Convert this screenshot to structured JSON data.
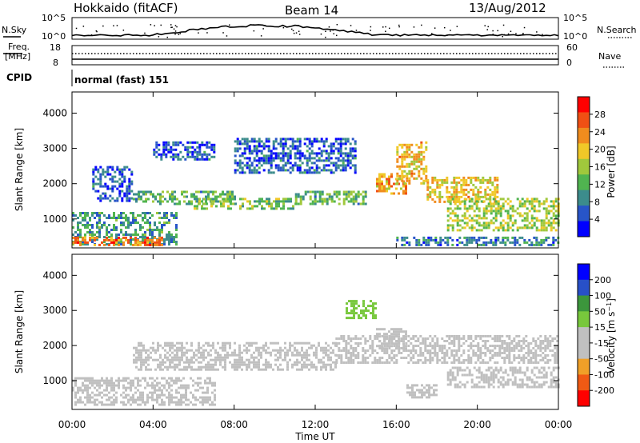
{
  "header": {
    "station": "Hokkaido (fitACF)",
    "beam": "Beam 14",
    "date": "13/Aug/2012"
  },
  "nsky_panel": {
    "left_label": "N.Sky",
    "right_label": "N.Search",
    "left_ticks": [
      "10^5",
      "10^0"
    ],
    "right_ticks": [
      "10^5",
      "10^0"
    ]
  },
  "freq_panel": {
    "left_label_1": "Freq.",
    "left_label_2": "[MHz]",
    "left_ticks": [
      "18",
      "8"
    ],
    "right_label": "Nave",
    "right_ticks": [
      "60",
      "0"
    ]
  },
  "cpid_panel": {
    "label": "CPID",
    "mode": "normal (fast) 151"
  },
  "chart_data": [
    {
      "type": "heatmap",
      "panel": "power",
      "ylabel": "Slant Range [km]",
      "ylim": [
        180,
        4600
      ],
      "yticks": [
        "4000",
        "3000",
        "2000",
        "1000"
      ],
      "colorbar": {
        "label": "Power [dB]",
        "ticks": [
          "28",
          "24",
          "20",
          "16",
          "12",
          "8",
          "4"
        ],
        "range": [
          0,
          32
        ],
        "colors": [
          "#0000ff",
          "#2855c8",
          "#3c8c8c",
          "#50b450",
          "#a0c83c",
          "#f0c828",
          "#f08c1e",
          "#f05014",
          "#ff0000"
        ]
      },
      "regions": [
        {
          "t0": 0.0,
          "t1": 5.2,
          "r0": 250,
          "r1": 1200,
          "level": 10
        },
        {
          "t0": 0.0,
          "t1": 4.5,
          "r0": 250,
          "r1": 500,
          "level": 24
        },
        {
          "t0": 1.0,
          "t1": 3.0,
          "r0": 1500,
          "r1": 2500,
          "level": 6
        },
        {
          "t0": 3.0,
          "t1": 8.0,
          "r0": 1400,
          "r1": 1800,
          "level": 12
        },
        {
          "t0": 4.0,
          "t1": 7.0,
          "r0": 2700,
          "r1": 3200,
          "level": 6
        },
        {
          "t0": 6.0,
          "t1": 11.0,
          "r0": 1300,
          "r1": 1600,
          "level": 14
        },
        {
          "t0": 8.0,
          "t1": 14.0,
          "r0": 2300,
          "r1": 3300,
          "level": 6
        },
        {
          "t0": 11.0,
          "t1": 14.5,
          "r0": 1450,
          "r1": 1800,
          "level": 12
        },
        {
          "t0": 15.0,
          "t1": 16.5,
          "r0": 1700,
          "r1": 2300,
          "level": 22
        },
        {
          "t0": 16.0,
          "t1": 17.5,
          "r0": 2000,
          "r1": 3200,
          "level": 20
        },
        {
          "t0": 17.5,
          "t1": 21.0,
          "r0": 1500,
          "r1": 2200,
          "level": 20
        },
        {
          "t0": 18.5,
          "t1": 24.0,
          "r0": 700,
          "r1": 1600,
          "level": 16
        },
        {
          "t0": 16.0,
          "t1": 24.0,
          "r0": 250,
          "r1": 500,
          "level": 8
        }
      ]
    },
    {
      "type": "heatmap",
      "panel": "velocity",
      "ylabel": "Slant Range [km]",
      "xlabel": "Time UT",
      "xlim": [
        0,
        24
      ],
      "ylim": [
        180,
        4600
      ],
      "xticks": [
        "00:00",
        "04:00",
        "08:00",
        "12:00",
        "16:00",
        "20:00",
        "00:00"
      ],
      "yticks": [
        "4000",
        "3000",
        "2000",
        "1000"
      ],
      "colorbar": {
        "label": "Velocity [m s^-1]",
        "ticks": [
          "200",
          "100",
          "50",
          "15",
          "-15",
          "-50",
          "-100",
          "-200"
        ],
        "range": [
          -250,
          250
        ],
        "colors": [
          "#ff0000",
          "#f05a14",
          "#f0a028",
          "#c0c0c0",
          "#c0c0c0",
          "#78c83c",
          "#3c963c",
          "#2850c8",
          "#0000ff"
        ]
      },
      "regions": [
        {
          "t0": 0.0,
          "t1": 7.0,
          "r0": 300,
          "r1": 1100,
          "level": 0
        },
        {
          "t0": 3.0,
          "t1": 13.0,
          "r0": 1300,
          "r1": 2100,
          "level": 0
        },
        {
          "t0": 13.0,
          "t1": 24.0,
          "r0": 1500,
          "r1": 2300,
          "level": 0
        },
        {
          "t0": 13.5,
          "t1": 15.0,
          "r0": 2800,
          "r1": 3300,
          "level": 60
        },
        {
          "t0": 15.0,
          "t1": 16.5,
          "r0": 1900,
          "r1": 2500,
          "level": -60
        },
        {
          "t0": 16.5,
          "t1": 18.0,
          "r0": 500,
          "r1": 900,
          "level": -60
        },
        {
          "t0": 18.5,
          "t1": 24.0,
          "r0": 800,
          "r1": 1400,
          "level": 0
        }
      ]
    }
  ]
}
